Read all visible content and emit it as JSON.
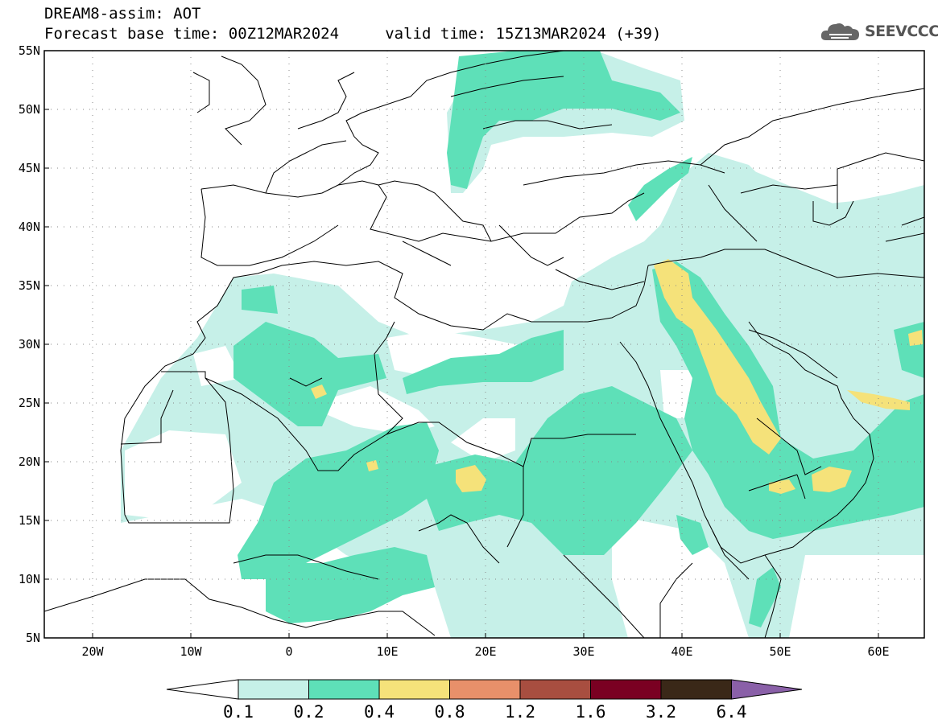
{
  "header": {
    "line1": "DREAM8-assim: AOT",
    "line2": "Forecast base time: 00Z12MAR2024     valid time: 15Z13MAR2024 (+39)"
  },
  "logo": {
    "text": "SEEVCCC",
    "icon": "cloud-icon"
  },
  "map": {
    "lat_labels": [
      "55N",
      "50N",
      "45N",
      "40N",
      "35N",
      "30N",
      "25N",
      "20N",
      "15N",
      "10N",
      "5N"
    ],
    "lon_labels": [
      "20W",
      "10W",
      "0",
      "10E",
      "20E",
      "30E",
      "40E",
      "50E",
      "60E"
    ]
  },
  "legend": {
    "ticks": [
      "0.1",
      "0.2",
      "0.4",
      "0.8",
      "1.2",
      "1.6",
      "3.2",
      "6.4"
    ],
    "colors": [
      "#c6f0e8",
      "#5ee0b8",
      "#f5e27a",
      "#e8906a",
      "#a84e40",
      "#7a0022",
      "#3a2818",
      "#8a60a8"
    ]
  }
}
